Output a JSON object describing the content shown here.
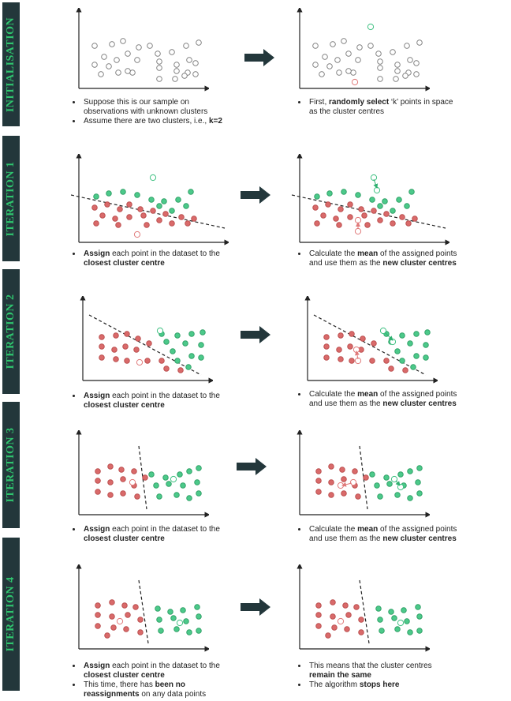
{
  "sections": [
    {
      "title": "INITIALISATION"
    },
    {
      "title": "ITERATION 1"
    },
    {
      "title": "ITERATION 2"
    },
    {
      "title": "ITERATION 3"
    },
    {
      "title": "ITERATION 4"
    }
  ],
  "texts": {
    "init_left_1": "Suppose this is our sample on observations with unknown clusters",
    "init_left_2a": "Assume there are two clusters, i.e., ",
    "init_left_2b": "k=2",
    "init_right_a": "First, ",
    "init_right_b": "randomly select",
    "init_right_c": " ‘k’ points in space as the cluster centres",
    "assign_a": "Assign",
    "assign_b": " each point in the dataset to the ",
    "assign_c": "closest cluster centre",
    "calc_a": "Calculate the ",
    "calc_b": "mean",
    "calc_c": " of the assigned points and use them as the ",
    "calc_d": "new cluster centres",
    "it4_left_2a": "This time, there has ",
    "it4_left_2b": "been no reassignments",
    "it4_left_2c": " on any data points",
    "it4_right_1a": "This means that the cluster centres ",
    "it4_right_1b": "remain the same",
    "it4_right_2a": "The algorithm ",
    "it4_right_2b": "stops here"
  },
  "colors": {
    "band": "#23373b",
    "title": "#2fc46e",
    "red": "#d96a6a",
    "green": "#4cc98a",
    "grey": "#888888",
    "arrow": "#23373b"
  },
  "icons": [
    "right-arrow-icon"
  ]
}
